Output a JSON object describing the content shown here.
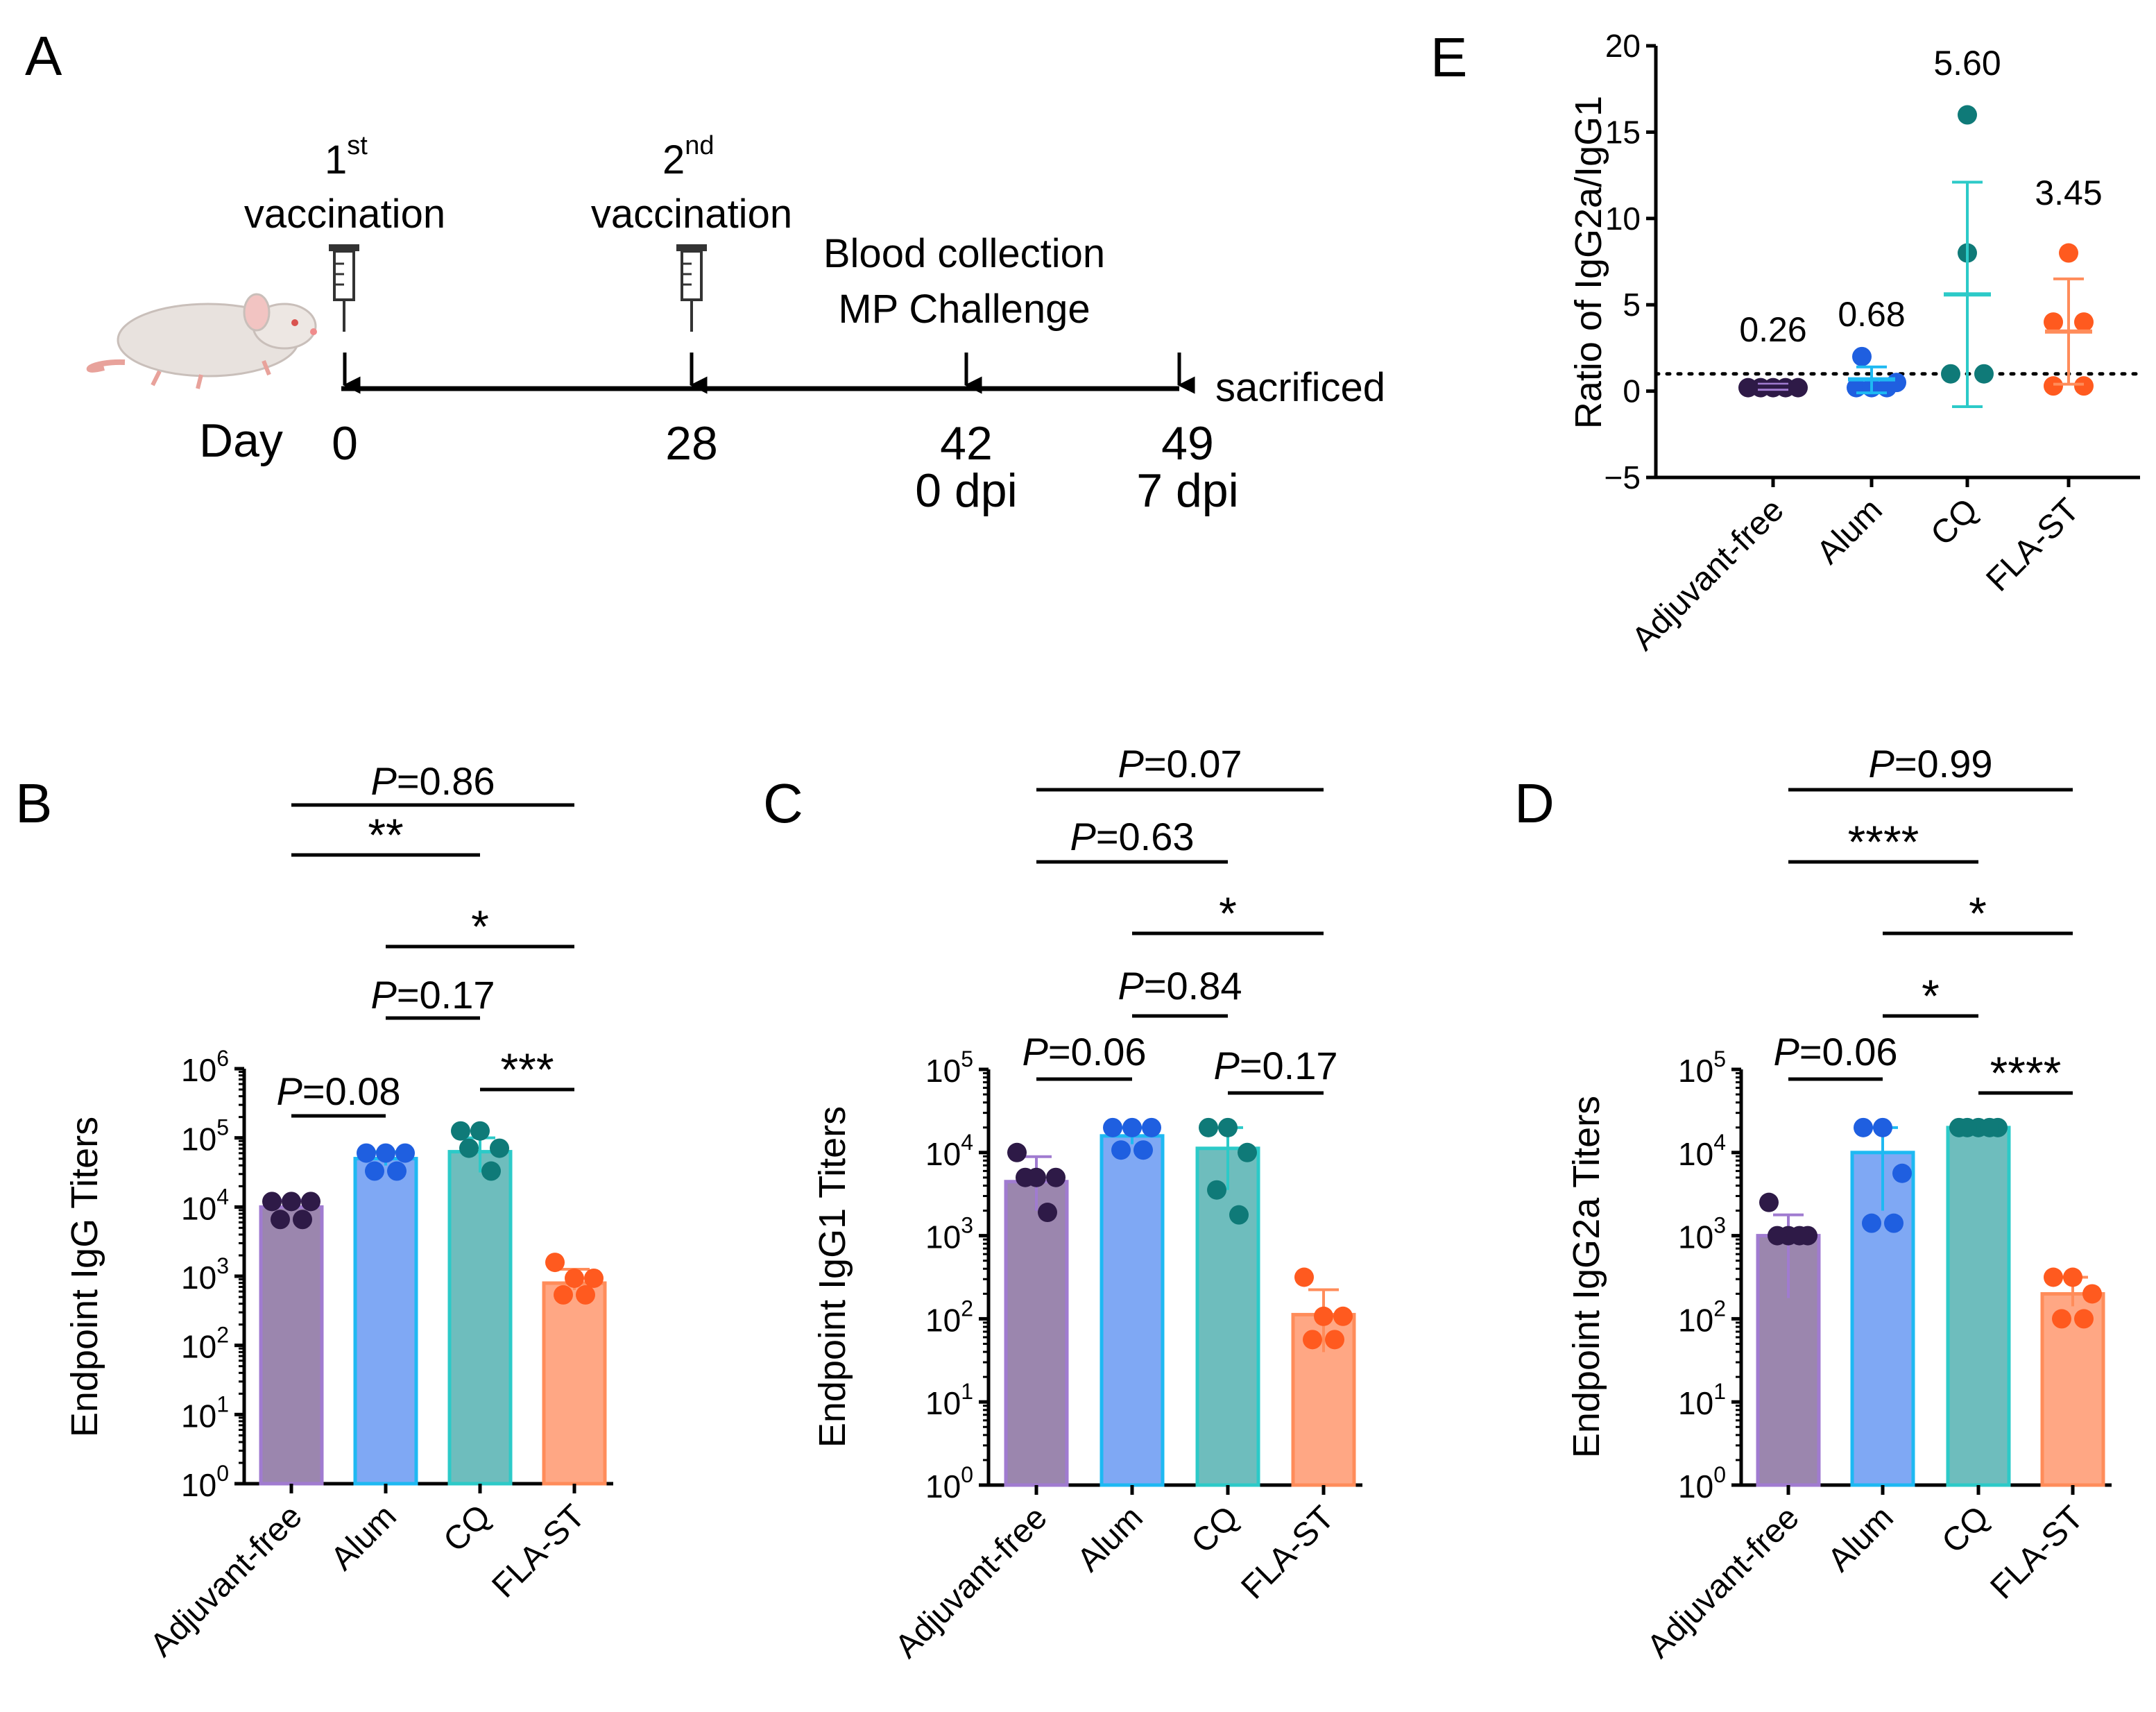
{
  "colors": {
    "groups": [
      "#2E1A47",
      "#1F5FE0",
      "#0F7A78",
      "#FF5A1F"
    ],
    "bars": [
      "#9B86AE",
      "#7FA8F4",
      "#6EBDBD",
      "#FFA784"
    ],
    "bar_edges": [
      "#A07BD0",
      "#1EB9F2",
      "#2CCAC8",
      "#FF8C5A"
    ]
  },
  "panels": {
    "A": {
      "label": "A",
      "first_num": "1",
      "first_sup": "st",
      "first_vacc": "vaccination",
      "second_num": "2",
      "second_sup": "nd",
      "second_vacc": "vaccination",
      "blood": "Blood collection",
      "challenge": "MP Challenge",
      "sacrificed": "sacrificed",
      "day_label": "Day",
      "days": [
        "0",
        "28",
        "42",
        "49"
      ],
      "dpi": [
        "0 dpi",
        "7 dpi"
      ]
    },
    "B": {
      "label": "B"
    },
    "C": {
      "label": "C"
    },
    "D": {
      "label": "D"
    },
    "E": {
      "label": "E"
    }
  },
  "chart_data": [
    {
      "panel": "B",
      "type": "bar",
      "ylabel": "Endpoint IgG Titers",
      "yscale": "log10",
      "ylim_exp": [
        0,
        6
      ],
      "yticks": [
        {
          "base": "10",
          "exp": "0"
        },
        {
          "base": "10",
          "exp": "1"
        },
        {
          "base": "10",
          "exp": "2"
        },
        {
          "base": "10",
          "exp": "3"
        },
        {
          "base": "10",
          "exp": "4"
        },
        {
          "base": "10",
          "exp": "5"
        },
        {
          "base": "10",
          "exp": "6"
        }
      ],
      "categories": [
        "Adjuvant-free",
        "Alum",
        "CQ",
        "FLA-ST"
      ],
      "means_log10": [
        4.0,
        4.7,
        4.8,
        2.9
      ],
      "sd_log10": [
        [
          4.0,
          4.1
        ],
        [
          4.6,
          4.8
        ],
        [
          4.5,
          5.0
        ],
        [
          2.8,
          3.1
        ]
      ],
      "points_log10": [
        [
          4.08,
          4.08,
          4.08,
          3.82,
          3.82
        ],
        [
          4.78,
          4.78,
          4.78,
          4.52,
          4.52
        ],
        [
          5.1,
          5.1,
          4.85,
          4.85,
          4.52
        ],
        [
          3.2,
          2.97,
          2.97,
          2.73,
          2.73
        ]
      ],
      "comparisons": [
        {
          "from": 0,
          "to": 3,
          "p_prefix": "P",
          "text": "=0.86"
        },
        {
          "from": 0,
          "to": 2,
          "p_prefix": "",
          "text": "**"
        },
        {
          "from": 1,
          "to": 3,
          "p_prefix": "",
          "text": "*"
        },
        {
          "from": 1,
          "to": 2,
          "p_prefix": "P",
          "text": "=0.17"
        },
        {
          "from": 2,
          "to": 3,
          "p_prefix": "",
          "text": "***"
        },
        {
          "from": 0,
          "to": 1,
          "p_prefix": "P",
          "text": "=0.08"
        }
      ]
    },
    {
      "panel": "C",
      "type": "bar",
      "ylabel": "Endpoint IgG1 Titers",
      "yscale": "log10",
      "ylim_exp": [
        0,
        5
      ],
      "yticks": [
        {
          "base": "10",
          "exp": "0"
        },
        {
          "base": "10",
          "exp": "1"
        },
        {
          "base": "10",
          "exp": "2"
        },
        {
          "base": "10",
          "exp": "3"
        },
        {
          "base": "10",
          "exp": "4"
        },
        {
          "base": "10",
          "exp": "5"
        }
      ],
      "categories": [
        "Adjuvant-free",
        "Alum",
        "CQ",
        "FLA-ST"
      ],
      "means_log10": [
        3.65,
        4.2,
        4.05,
        2.05
      ],
      "sd_log10": [
        [
          3.3,
          3.95
        ],
        [
          4.1,
          4.3
        ],
        [
          3.55,
          4.3
        ],
        [
          1.6,
          2.35
        ]
      ],
      "points_log10": [
        [
          4.0,
          3.7,
          3.7,
          3.7,
          3.28
        ],
        [
          4.3,
          4.3,
          4.3,
          4.03,
          4.03
        ],
        [
          4.3,
          4.3,
          4.0,
          3.55,
          3.25
        ],
        [
          2.5,
          2.03,
          2.03,
          1.75,
          1.75
        ]
      ],
      "comparisons": [
        {
          "from": 0,
          "to": 3,
          "p_prefix": "P",
          "text": "=0.07"
        },
        {
          "from": 0,
          "to": 2,
          "p_prefix": "P",
          "text": "=0.63"
        },
        {
          "from": 1,
          "to": 3,
          "p_prefix": "",
          "text": "*"
        },
        {
          "from": 1,
          "to": 2,
          "p_prefix": "P",
          "text": "=0.84"
        },
        {
          "from": 0,
          "to": 1,
          "p_prefix": "P",
          "text": "=0.06"
        },
        {
          "from": 2,
          "to": 3,
          "p_prefix": "P",
          "text": "=0.17"
        }
      ]
    },
    {
      "panel": "D",
      "type": "bar",
      "ylabel": "Endpoint IgG2a Titers",
      "yscale": "log10",
      "ylim_exp": [
        0,
        5
      ],
      "yticks": [
        {
          "base": "10",
          "exp": "0"
        },
        {
          "base": "10",
          "exp": "1"
        },
        {
          "base": "10",
          "exp": "2"
        },
        {
          "base": "10",
          "exp": "3"
        },
        {
          "base": "10",
          "exp": "4"
        },
        {
          "base": "10",
          "exp": "5"
        }
      ],
      "categories": [
        "Adjuvant-free",
        "Alum",
        "CQ",
        "FLA-ST"
      ],
      "means_log10": [
        3.0,
        4.0,
        4.3,
        2.3
      ],
      "sd_log10": [
        [
          2.25,
          3.25
        ],
        [
          3.3,
          4.3
        ],
        [
          4.3,
          4.3
        ],
        [
          2.15,
          2.5
        ]
      ],
      "points_log10": [
        [
          3.4,
          3.0,
          3.0,
          3.0,
          3.0
        ],
        [
          4.3,
          4.3,
          3.75,
          3.15,
          3.15
        ],
        [
          4.3,
          4.3,
          4.3,
          4.3,
          4.3
        ],
        [
          2.5,
          2.5,
          2.3,
          2.0,
          2.0
        ]
      ],
      "comparisons": [
        {
          "from": 0,
          "to": 3,
          "p_prefix": "P",
          "text": "=0.99"
        },
        {
          "from": 0,
          "to": 2,
          "p_prefix": "",
          "text": "****"
        },
        {
          "from": 1,
          "to": 3,
          "p_prefix": "",
          "text": "*"
        },
        {
          "from": 1,
          "to": 2,
          "p_prefix": "",
          "text": "*"
        },
        {
          "from": 0,
          "to": 1,
          "p_prefix": "P",
          "text": "=0.06"
        },
        {
          "from": 2,
          "to": 3,
          "p_prefix": "",
          "text": "****"
        }
      ]
    },
    {
      "panel": "E",
      "type": "scatter",
      "ylabel": "Ratio of IgG2a/IgG1",
      "ylim": [
        -5,
        20
      ],
      "yticks": [
        "−5",
        "0",
        "5",
        "10",
        "15",
        "20"
      ],
      "reference_line": 1,
      "categories": [
        "Adjuvant-free",
        "Alum",
        "CQ",
        "FLA-ST"
      ],
      "means": [
        0.26,
        0.68,
        5.6,
        3.45
      ],
      "mean_labels": [
        "0.26",
        "0.68",
        "5.60",
        "3.45"
      ],
      "sd": [
        [
          0.1,
          0.4
        ],
        [
          -0.1,
          1.4
        ],
        [
          -0.9,
          12.1
        ],
        [
          0.4,
          6.5
        ]
      ],
      "points": [
        [
          0.2,
          0.2,
          0.2,
          0.2,
          0.2
        ],
        [
          0.2,
          0.2,
          0.2,
          2.0,
          0.5
        ],
        [
          16.0,
          8.0,
          1.0,
          1.0
        ],
        [
          8.0,
          4.0,
          4.0,
          0.3,
          0.3
        ]
      ]
    }
  ]
}
